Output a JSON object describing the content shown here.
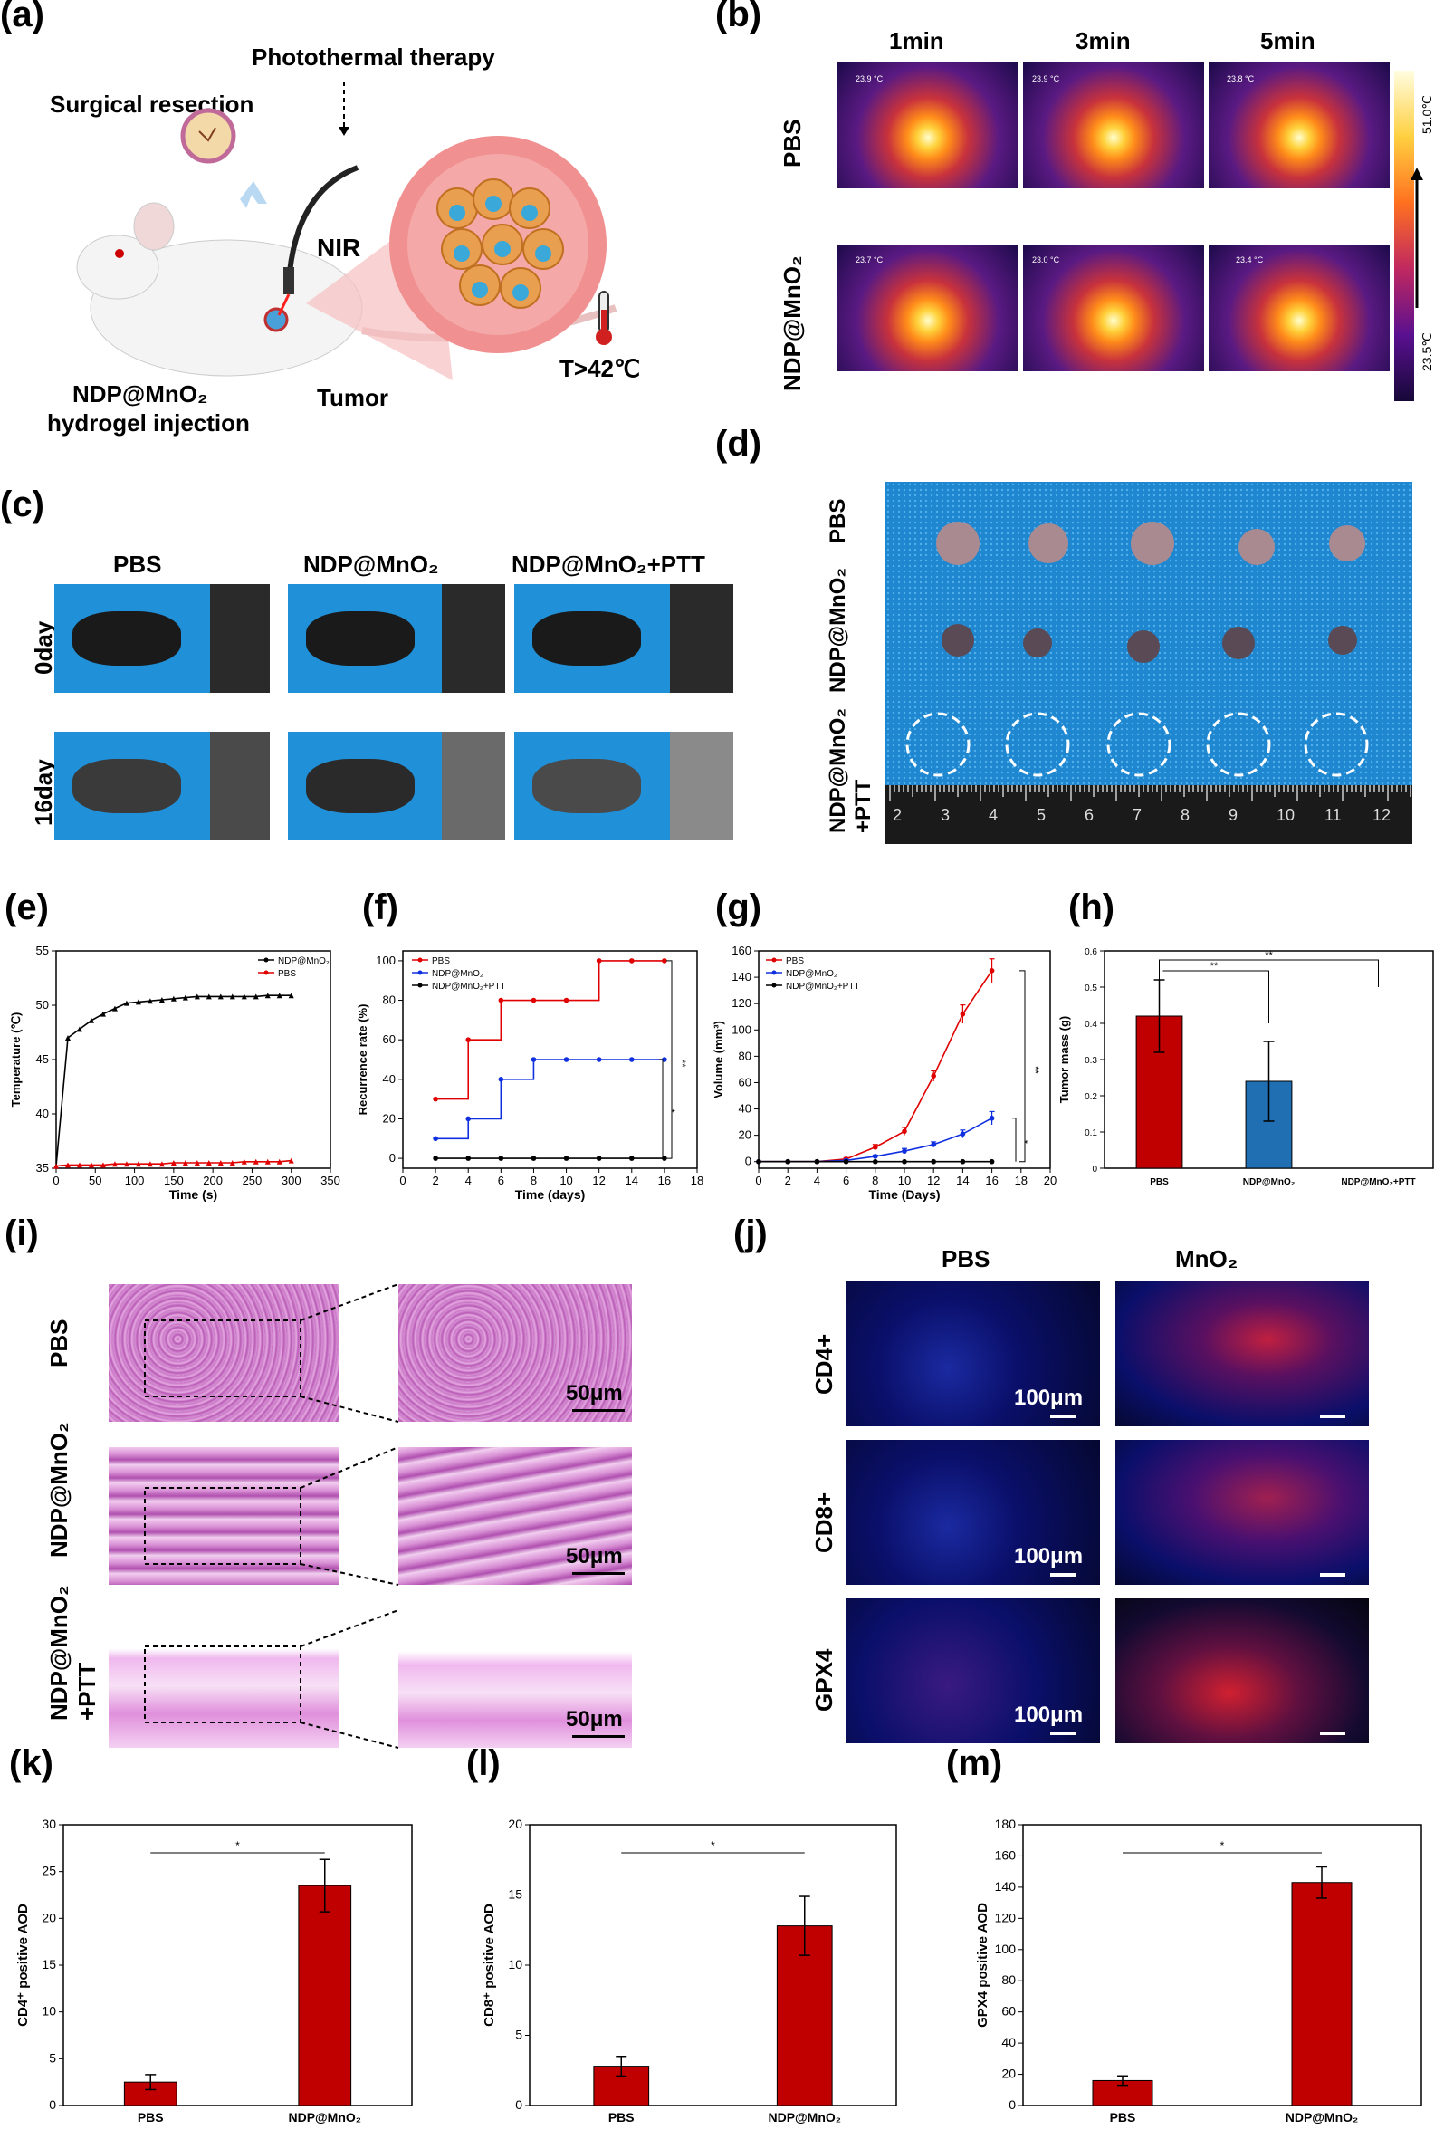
{
  "panels": {
    "a": "(a)",
    "b": "(b)",
    "c": "(c)",
    "d": "(d)",
    "e": "(e)",
    "f": "(f)",
    "g": "(g)",
    "h": "(h)",
    "i": "(i)",
    "j": "(j)",
    "k": "(k)",
    "l": "(l)",
    "m": "(m)"
  },
  "panel_a": {
    "surgical": "Surgical resection",
    "photothermal": "Photothermal therapy",
    "nir": "NIR",
    "ndp_line1": "NDP@MnO₂",
    "ndp_line2": "hydrogel injection",
    "tumor": "Tumor",
    "temp": "T>42℃"
  },
  "panel_b": {
    "times": [
      "1min",
      "3min",
      "5min"
    ],
    "rows": [
      "PBS",
      "NDP@MnO₂"
    ],
    "colorbar_max": "51.0℃",
    "colorbar_min": "23.5℃",
    "readings": [
      [
        "23.9 °C",
        "23.9 °C",
        "23.8 °C"
      ],
      [
        "23.7 °C",
        "23.0 °C",
        "23.4 °C"
      ]
    ]
  },
  "panel_c": {
    "cols": [
      "PBS",
      "NDP@MnO₂",
      "NDP@MnO₂+PTT"
    ],
    "rows": [
      "0day",
      "16day"
    ]
  },
  "panel_d": {
    "rows": [
      "PBS",
      "NDP@MnO₂",
      "NDP@MnO₂ +PTT"
    ],
    "ruler": [
      "2",
      "3",
      "4",
      "5",
      "6",
      "7",
      "8",
      "9",
      "10",
      "11",
      "12"
    ]
  },
  "panel_i": {
    "rows": [
      "PBS",
      "NDP@MnO₂",
      "NDP@MnO₂ +PTT"
    ],
    "scale": "50μm"
  },
  "panel_j": {
    "cols": [
      "PBS",
      "MnO₂"
    ],
    "rows": [
      "CD4+",
      "CD8+",
      "GPX4"
    ],
    "scale": "100μm"
  },
  "colors": {
    "red": "#c00000",
    "blue": "#1f6fb2",
    "black": "#000000"
  },
  "chart_data": [
    {
      "id": "e",
      "type": "line",
      "xlabel": "Time (s)",
      "ylabel": "Temperature (℃)",
      "xlim": [
        0,
        350
      ],
      "ylim": [
        35,
        55
      ],
      "xticks": [
        0,
        50,
        100,
        150,
        200,
        250,
        300,
        350
      ],
      "yticks": [
        35,
        40,
        45,
        50,
        55
      ],
      "legend": [
        "NDP@MnO₂",
        "PBS"
      ],
      "series": [
        {
          "name": "NDP@MnO₂",
          "color": "#000000",
          "x": [
            0,
            15,
            30,
            45,
            60,
            75,
            90,
            105,
            120,
            135,
            150,
            165,
            180,
            195,
            210,
            225,
            240,
            255,
            270,
            285,
            300
          ],
          "y": [
            35.2,
            47.0,
            47.8,
            48.6,
            49.2,
            49.7,
            50.2,
            50.3,
            50.4,
            50.5,
            50.6,
            50.7,
            50.8,
            50.8,
            50.8,
            50.8,
            50.8,
            50.8,
            50.9,
            50.9,
            50.9
          ]
        },
        {
          "name": "PBS",
          "color": "#e00000",
          "x": [
            0,
            15,
            30,
            45,
            60,
            75,
            90,
            105,
            120,
            135,
            150,
            165,
            180,
            195,
            210,
            225,
            240,
            255,
            270,
            285,
            300
          ],
          "y": [
            35.2,
            35.3,
            35.3,
            35.3,
            35.3,
            35.4,
            35.4,
            35.4,
            35.4,
            35.4,
            35.5,
            35.5,
            35.5,
            35.5,
            35.5,
            35.5,
            35.6,
            35.6,
            35.6,
            35.6,
            35.7
          ]
        }
      ]
    },
    {
      "id": "f",
      "type": "line",
      "xlabel": "Time (days)",
      "ylabel": "Recurrence rate (%)",
      "xlim": [
        0,
        18
      ],
      "ylim": [
        -5,
        105
      ],
      "xticks": [
        0,
        2,
        4,
        6,
        8,
        10,
        12,
        14,
        16,
        18
      ],
      "yticks": [
        0,
        20,
        40,
        60,
        80,
        100
      ],
      "legend": [
        "PBS",
        "NDP@MnO₂",
        "NDP@MnO₂+PTT"
      ],
      "series": [
        {
          "name": "PBS",
          "color": "#e00000",
          "x": [
            2,
            4,
            6,
            8,
            10,
            12,
            14,
            16
          ],
          "y": [
            30,
            60,
            80,
            80,
            80,
            100,
            100,
            100
          ]
        },
        {
          "name": "NDP@MnO₂",
          "color": "#1030e0",
          "x": [
            2,
            4,
            6,
            8,
            10,
            12,
            14,
            16
          ],
          "y": [
            10,
            20,
            40,
            50,
            50,
            50,
            50,
            50
          ]
        },
        {
          "name": "NDP@MnO₂+PTT",
          "color": "#000000",
          "x": [
            2,
            4,
            6,
            8,
            10,
            12,
            14,
            16
          ],
          "y": [
            0,
            0,
            0,
            0,
            0,
            0,
            0,
            0
          ]
        }
      ],
      "annotations": [
        "**",
        "*"
      ]
    },
    {
      "id": "g",
      "type": "line",
      "xlabel": "Time (Days)",
      "ylabel": "Volume (mm³)",
      "xlim": [
        0,
        20
      ],
      "ylim": [
        -5,
        160
      ],
      "xticks": [
        0,
        2,
        4,
        6,
        8,
        10,
        12,
        14,
        16,
        18,
        20
      ],
      "yticks": [
        0,
        20,
        40,
        60,
        80,
        100,
        120,
        140,
        160
      ],
      "legend": [
        "PBS",
        "NDP@MnO₂",
        "NDP@MnO₂+PTT"
      ],
      "series": [
        {
          "name": "PBS",
          "color": "#e00000",
          "x": [
            0,
            2,
            4,
            6,
            8,
            10,
            12,
            14,
            16
          ],
          "y": [
            0,
            0,
            0,
            2,
            11,
            23,
            65,
            112,
            145
          ],
          "err": [
            0,
            0,
            0,
            1,
            2,
            3,
            4,
            7,
            9
          ]
        },
        {
          "name": "NDP@MnO₂",
          "color": "#1030e0",
          "x": [
            0,
            2,
            4,
            6,
            8,
            10,
            12,
            14,
            16
          ],
          "y": [
            0,
            0,
            0,
            1,
            4,
            8,
            13,
            21,
            33
          ],
          "err": [
            0,
            0,
            0,
            0,
            1,
            2,
            2,
            3,
            5
          ]
        },
        {
          "name": "NDP@MnO₂+PTT",
          "color": "#000000",
          "x": [
            0,
            2,
            4,
            6,
            8,
            10,
            12,
            14,
            16
          ],
          "y": [
            0,
            0,
            0,
            0,
            0,
            0,
            0,
            0,
            0
          ],
          "err": [
            0,
            0,
            0,
            0,
            0,
            0,
            0,
            0,
            0
          ]
        }
      ],
      "annotations": [
        "**",
        "*"
      ]
    },
    {
      "id": "h",
      "type": "bar",
      "ylabel": "Tumor mass (g)",
      "ylim": [
        0,
        0.6
      ],
      "yticks": [
        0,
        0.1,
        0.2,
        0.3,
        0.4,
        0.5,
        0.6
      ],
      "categories": [
        "PBS",
        "NDP@MnO₂",
        "NDP@MnO₂+PTT"
      ],
      "values": [
        0.42,
        0.24,
        0
      ],
      "err": [
        0.1,
        0.11,
        0
      ],
      "colors": [
        "#c00000",
        "#1f6fb2",
        "#000000"
      ],
      "annotations": [
        "**",
        "**"
      ]
    },
    {
      "id": "k",
      "type": "bar",
      "ylabel": "CD4⁺ positive AOD",
      "ylim": [
        0,
        30
      ],
      "yticks": [
        0,
        5,
        10,
        15,
        20,
        25,
        30
      ],
      "categories": [
        "PBS",
        "NDP@MnO₂"
      ],
      "values": [
        2.5,
        23.5
      ],
      "err": [
        0.8,
        2.8
      ],
      "colors": [
        "#c00000",
        "#c00000"
      ],
      "annotations": [
        "*"
      ]
    },
    {
      "id": "l",
      "type": "bar",
      "ylabel": "CD8⁺ positive AOD",
      "ylim": [
        0,
        20
      ],
      "yticks": [
        0,
        5,
        10,
        15,
        20
      ],
      "categories": [
        "PBS",
        "NDP@MnO₂"
      ],
      "values": [
        2.8,
        12.8
      ],
      "err": [
        0.7,
        2.1
      ],
      "colors": [
        "#c00000",
        "#c00000"
      ],
      "annotations": [
        "*"
      ]
    },
    {
      "id": "m",
      "type": "bar",
      "ylabel": "GPX4 positive AOD",
      "ylim": [
        0,
        180
      ],
      "yticks": [
        0,
        20,
        40,
        60,
        80,
        100,
        120,
        140,
        160,
        180
      ],
      "categories": [
        "PBS",
        "NDP@MnO₂"
      ],
      "values": [
        16,
        143
      ],
      "err": [
        3,
        10
      ],
      "colors": [
        "#c00000",
        "#c00000"
      ],
      "annotations": [
        "*"
      ]
    }
  ]
}
